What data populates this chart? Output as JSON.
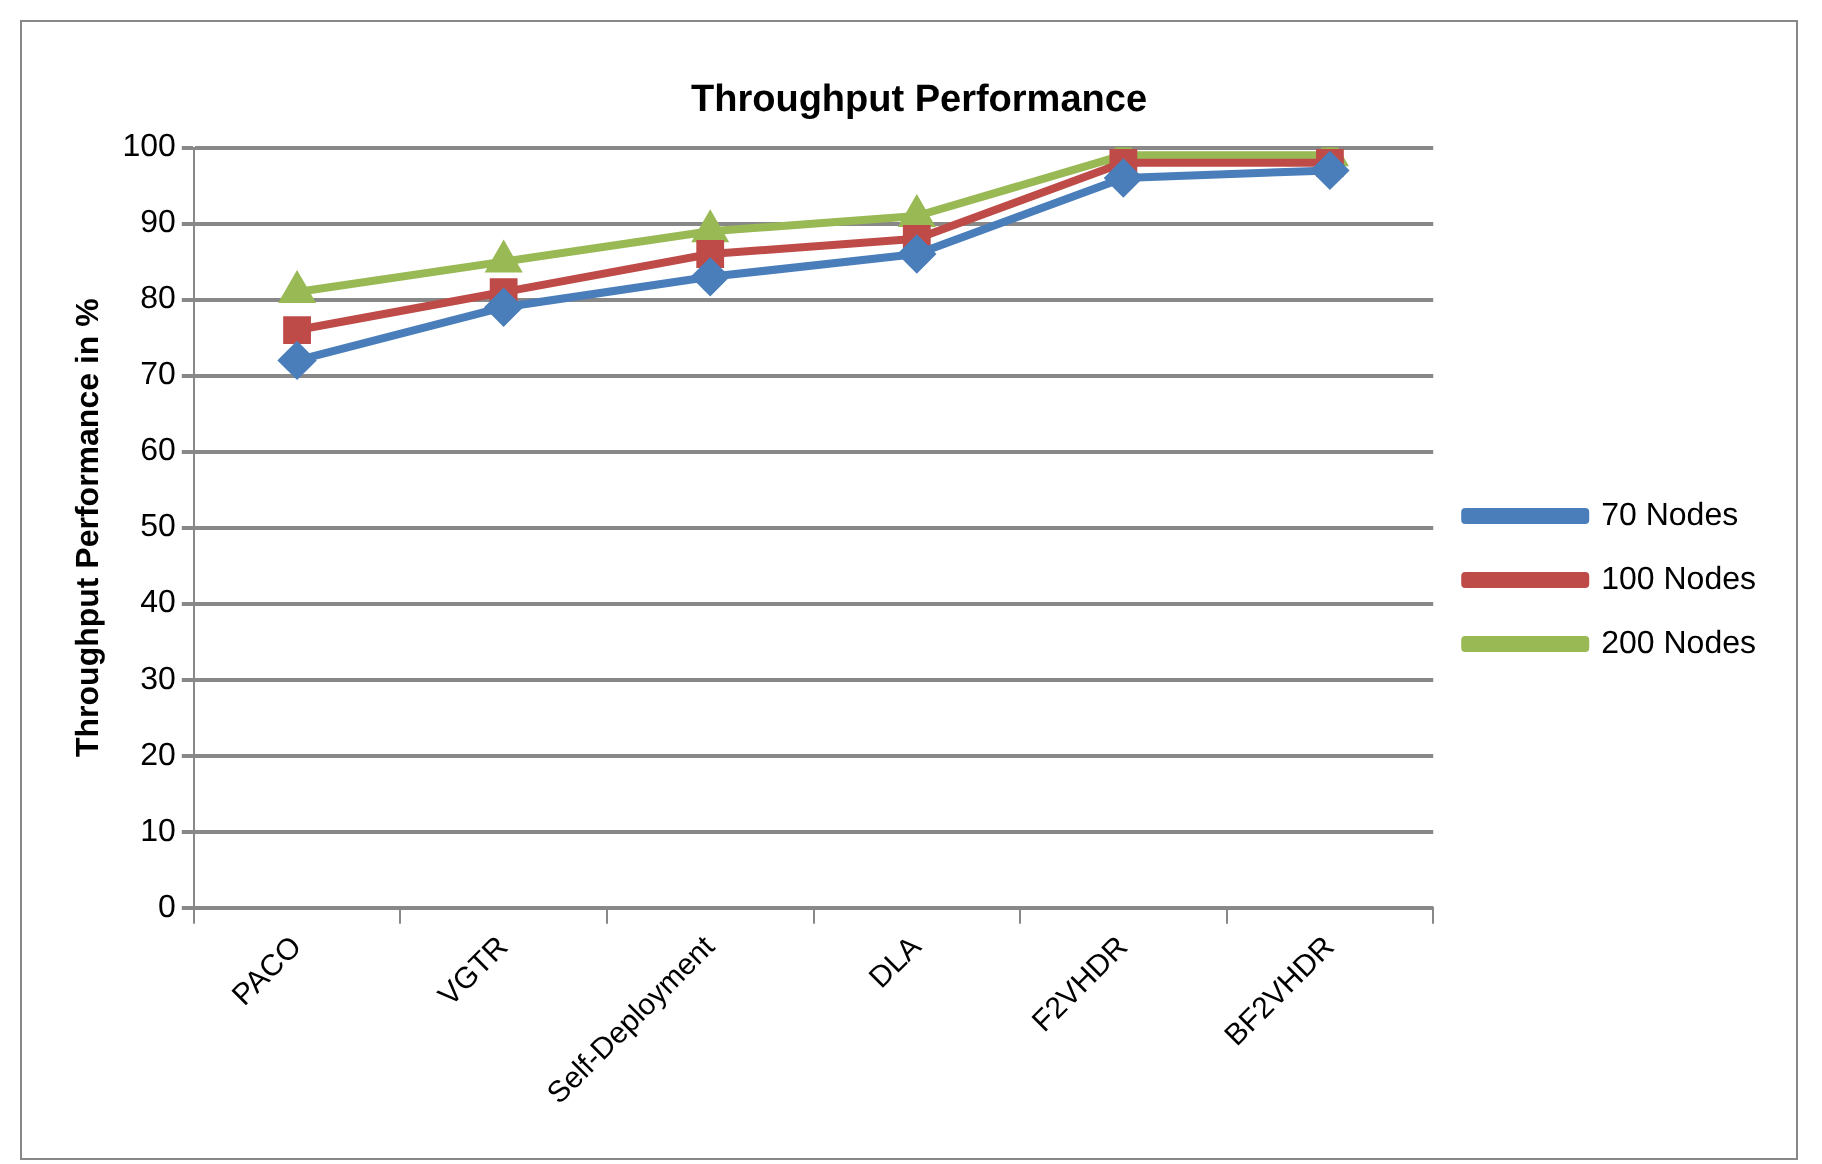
{
  "chart_data": {
    "type": "line",
    "title": "Throughput Performance",
    "ylabel": "Throughput Performance in %",
    "categories": [
      "PACO",
      "VGTR",
      "Self-Deployment",
      "DLA",
      "F2VHDR",
      "BF2VHDR"
    ],
    "series": [
      {
        "name": "70 Nodes",
        "color": "#4a7ebb",
        "marker": "diamond",
        "values": [
          72,
          79,
          83,
          86,
          96,
          97
        ]
      },
      {
        "name": "100 Nodes",
        "color": "#be4b48",
        "marker": "square",
        "values": [
          76,
          81,
          86,
          88,
          98,
          98
        ]
      },
      {
        "name": "200 Nodes",
        "color": "#98b954",
        "marker": "triangle",
        "values": [
          81,
          85,
          89,
          91,
          99,
          99
        ]
      }
    ],
    "ylim": [
      0,
      100
    ],
    "yticks": [
      0,
      10,
      20,
      30,
      40,
      50,
      60,
      70,
      80,
      90,
      100
    ],
    "grid": "y",
    "legend": "right",
    "line_style": "solid"
  }
}
